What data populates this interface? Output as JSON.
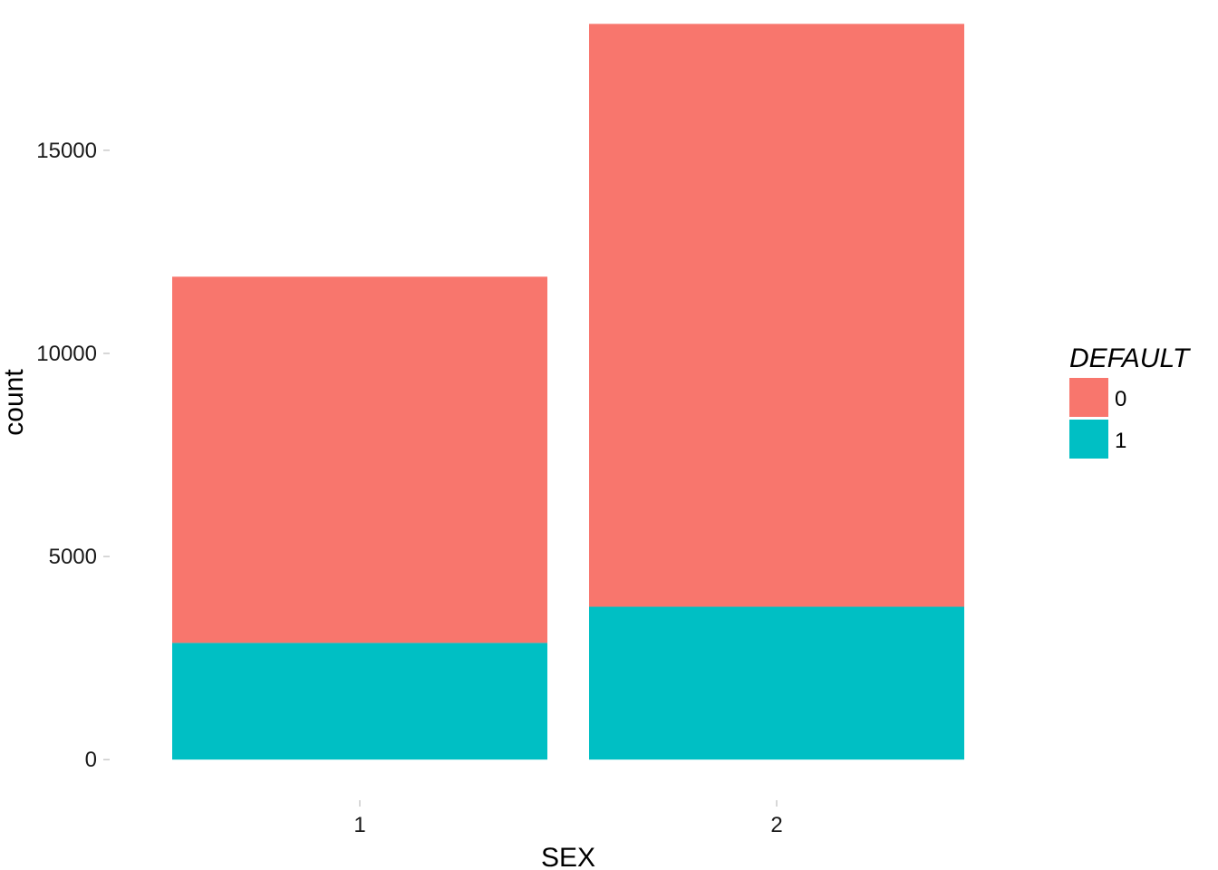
{
  "chart_data": {
    "type": "bar",
    "stacked": true,
    "xlabel": "SEX",
    "ylabel": "count",
    "categories": [
      "1",
      "2"
    ],
    "series": [
      {
        "name": "0",
        "color": "#F8766D",
        "values": [
          9015,
          14349
        ]
      },
      {
        "name": "1",
        "color": "#00BFC4",
        "values": [
          2873,
          3763
        ]
      }
    ],
    "ylim": [
      -1000,
      18700
    ],
    "yticks": [
      0,
      5000,
      10000,
      15000
    ],
    "ytick_labels": [
      "0",
      "5000",
      "10000",
      "15000"
    ],
    "grid": false,
    "legend": {
      "title": "DEFAULT",
      "position": "right"
    }
  }
}
